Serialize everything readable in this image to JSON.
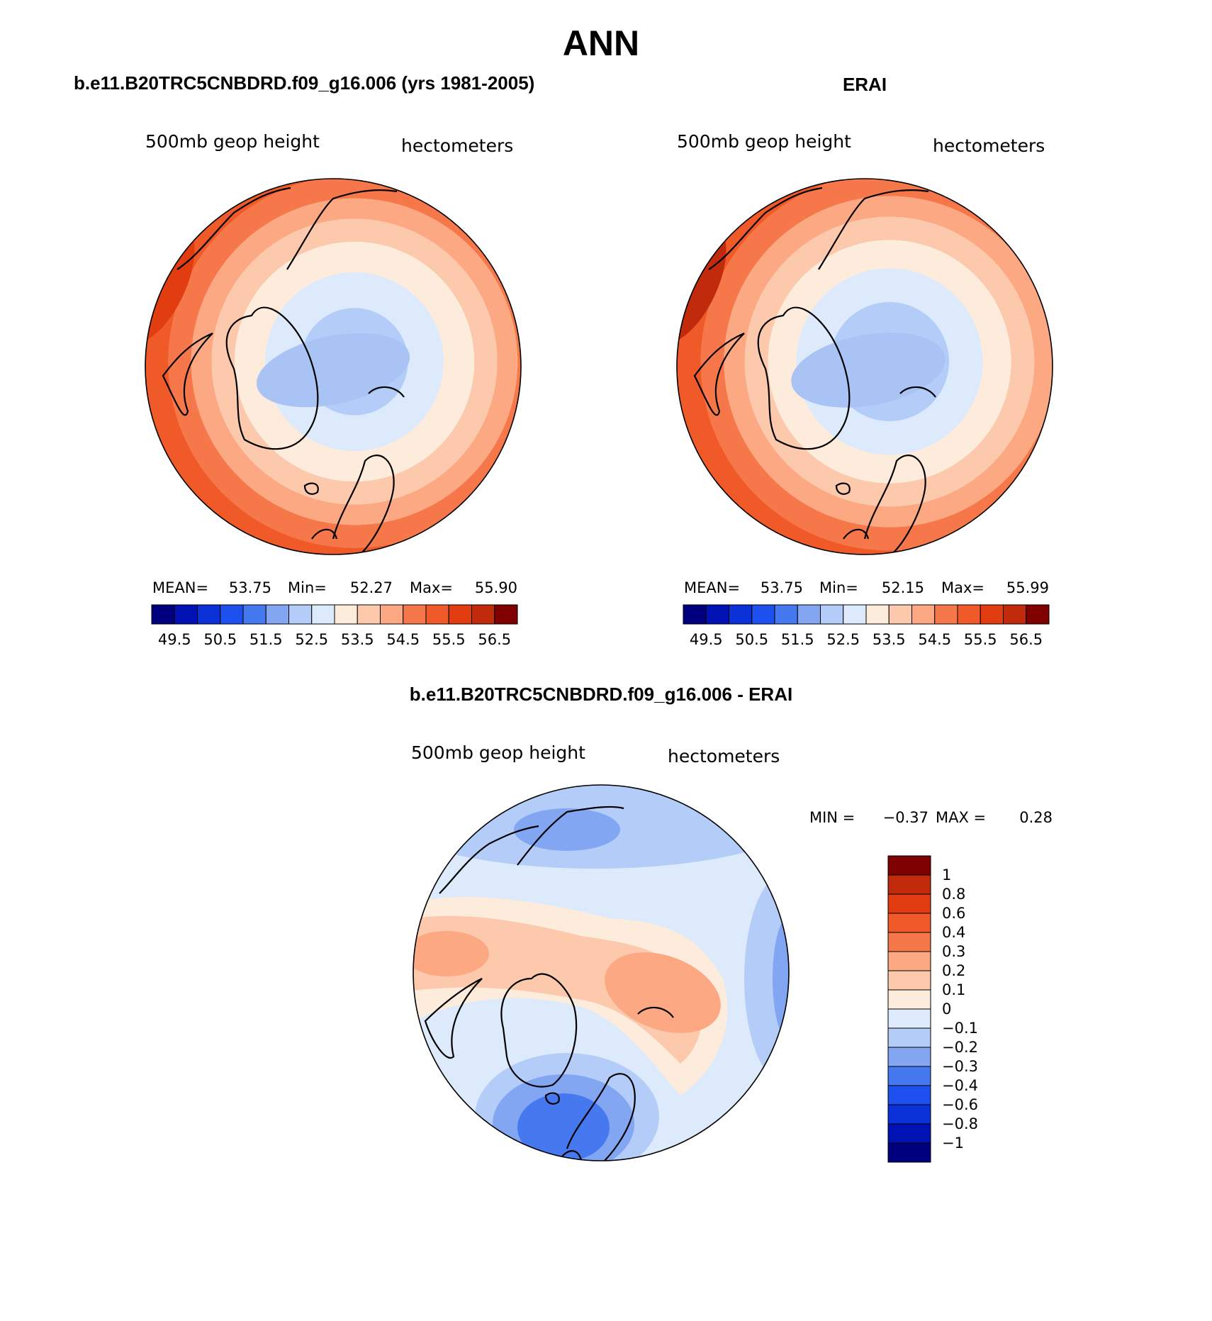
{
  "figure_title": "ANN",
  "panels": [
    {
      "case_label": "b.e11.B20TRC5CNBDRD.f09_g16.006 (yrs 1981-2005)",
      "variable": "500mb geop height",
      "units": "hectometers",
      "stats": {
        "mean_label": "MEAN=",
        "mean": "53.75",
        "min_label": "Min=",
        "min": "52.27",
        "max_label": "Max=",
        "max": "55.90"
      }
    },
    {
      "case_label": "ERAI",
      "variable": "500mb geop height",
      "units": "hectometers",
      "stats": {
        "mean_label": "MEAN=",
        "mean": "53.75",
        "min_label": "Min=",
        "min": "52.15",
        "max_label": "Max=",
        "max": "55.99"
      }
    },
    {
      "case_label": "b.e11.B20TRC5CNBDRD.f09_g16.006 - ERAI",
      "variable": "500mb geop height",
      "units": "hectometers",
      "stats": {
        "min_label": "MIN =",
        "min": "−0.37",
        "max_label": "MAX =",
        "max": "0.28"
      }
    }
  ],
  "chart_data": [
    {
      "type": "heatmap",
      "projection": "north-polar-stereographic",
      "field": "500mb geop height",
      "levels": [
        49.5,
        50,
        50.5,
        51,
        51.5,
        52,
        52.5,
        53,
        53.5,
        54,
        54.5,
        55,
        55.5,
        56,
        56.5
      ],
      "colorbar_ticks": [
        "49.5",
        "50.5",
        "51.5",
        "52.5",
        "53.5",
        "54.5",
        "55.5",
        "56.5"
      ],
      "colors": [
        "#00007f",
        "#0012b4",
        "#0a32d8",
        "#1e50f0",
        "#4678f0",
        "#82a6f2",
        "#b4cdf8",
        "#dceafb",
        "#fdebdc",
        "#fcc9ad",
        "#fba883",
        "#f6784a",
        "#ef5a28",
        "#e23d10",
        "#c22a0c",
        "#7f0000"
      ],
      "colorbar_placement": "bottom",
      "grid": false
    },
    {
      "type": "heatmap",
      "projection": "north-polar-stereographic",
      "field": "500mb geop height",
      "levels": [
        49.5,
        50,
        50.5,
        51,
        51.5,
        52,
        52.5,
        53,
        53.5,
        54,
        54.5,
        55,
        55.5,
        56,
        56.5
      ],
      "colorbar_ticks": [
        "49.5",
        "50.5",
        "51.5",
        "52.5",
        "53.5",
        "54.5",
        "55.5",
        "56.5"
      ],
      "colors": [
        "#00007f",
        "#0012b4",
        "#0a32d8",
        "#1e50f0",
        "#4678f0",
        "#82a6f2",
        "#b4cdf8",
        "#dceafb",
        "#fdebdc",
        "#fcc9ad",
        "#fba883",
        "#f6784a",
        "#ef5a28",
        "#e23d10",
        "#c22a0c",
        "#7f0000"
      ],
      "colorbar_placement": "bottom",
      "grid": false
    },
    {
      "type": "heatmap",
      "projection": "north-polar-stereographic",
      "field": "500mb geop height difference",
      "levels": [
        -1,
        -0.8,
        -0.6,
        -0.4,
        -0.3,
        -0.2,
        -0.1,
        0,
        0.1,
        0.2,
        0.3,
        0.4,
        0.6,
        0.8,
        1
      ],
      "colorbar_ticks": [
        "1",
        "0.8",
        "0.6",
        "0.4",
        "0.3",
        "0.2",
        "0.1",
        "0",
        "−0.1",
        "−0.2",
        "−0.3",
        "−0.4",
        "−0.6",
        "−0.8",
        "−1"
      ],
      "colors": [
        "#00007f",
        "#0012b4",
        "#0a32d8",
        "#1e50f0",
        "#4678f0",
        "#82a6f2",
        "#b4cdf8",
        "#dceafb",
        "#fdebdc",
        "#fcc9ad",
        "#fba883",
        "#f6784a",
        "#ef5a28",
        "#e23d10",
        "#c22a0c",
        "#7f0000"
      ],
      "colorbar_placement": "right",
      "grid": false
    }
  ]
}
